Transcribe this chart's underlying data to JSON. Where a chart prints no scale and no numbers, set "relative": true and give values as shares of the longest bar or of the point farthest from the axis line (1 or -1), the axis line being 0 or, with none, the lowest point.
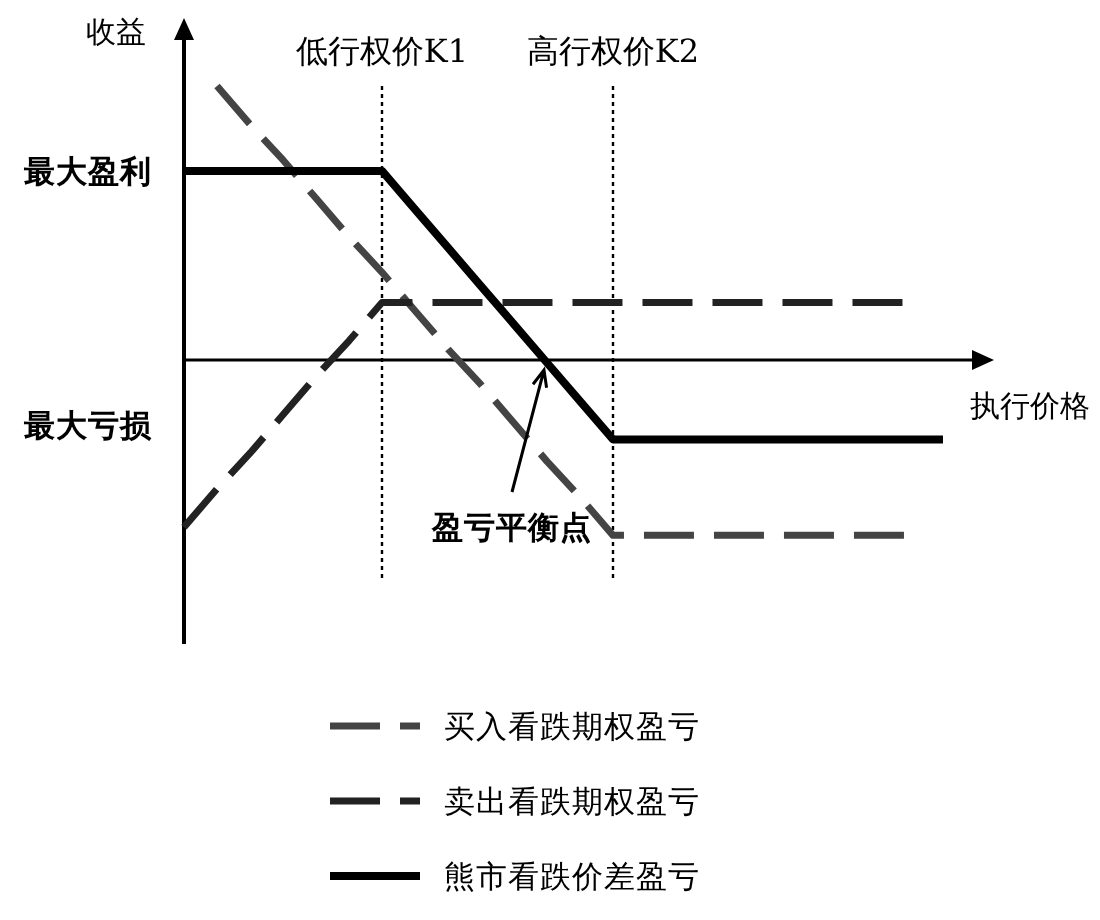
{
  "chart_data": {
    "type": "line",
    "xlabel": "执行价格",
    "ylabel": "收益",
    "relative": true,
    "tick_labels": "x",
    "legend": "bottom",
    "categories": [
      null,
      null,
      null,
      null,
      null,
      null,
      "低行权价K1",
      null,
      null,
      null,
      null,
      null,
      null,
      "高行权价K2",
      null,
      null,
      null,
      null,
      null,
      null,
      null,
      null,
      null,
      null
    ],
    "series": [
      {
        "name": "买入看跌期权盈亏",
        "color": "#444444",
        "line_style": "dashed",
        "values": [
          null,
          1,
          0.86,
          0.73,
          0.59,
          0.45,
          0.32,
          0.18,
          0.04,
          -0.09,
          -0.23,
          -0.37,
          -0.5,
          -0.64,
          -0.64,
          -0.64,
          -0.64,
          -0.64,
          -0.64,
          -0.64,
          -0.64,
          -0.64,
          -0.64,
          null
        ]
      },
      {
        "name": "卖出看跌期权盈亏",
        "color": "#222222",
        "line_style": "dashed",
        "values": [
          -0.61,
          -0.47,
          -0.34,
          -0.2,
          -0.06,
          0.07,
          0.21,
          0.21,
          0.21,
          0.21,
          0.21,
          0.21,
          0.21,
          0.21,
          0.21,
          0.21,
          0.21,
          0.21,
          0.21,
          0.21,
          0.21,
          0.21,
          0.21,
          null
        ]
      },
      {
        "name": "熊市看跌价差盈亏",
        "color": "#000000",
        "line_style": "solid",
        "values": [
          0.69,
          0.69,
          0.69,
          0.69,
          0.69,
          0.69,
          0.69,
          0.55,
          0.41,
          0.27,
          0.13,
          -0.01,
          -0.15,
          -0.29,
          -0.29,
          -0.29,
          -0.29,
          -0.29,
          -0.29,
          -0.29,
          -0.29,
          -0.29,
          -0.29,
          -0.29
        ]
      }
    ],
    "ref_lines": [
      {
        "axis": "x",
        "value": "低行权价K1",
        "line_style": "dotted"
      },
      {
        "axis": "x",
        "value": "高行权价K2",
        "line_style": "dotted"
      }
    ],
    "annotations": [
      "最大盈利",
      "最大亏损",
      "盈亏平衡点"
    ]
  }
}
